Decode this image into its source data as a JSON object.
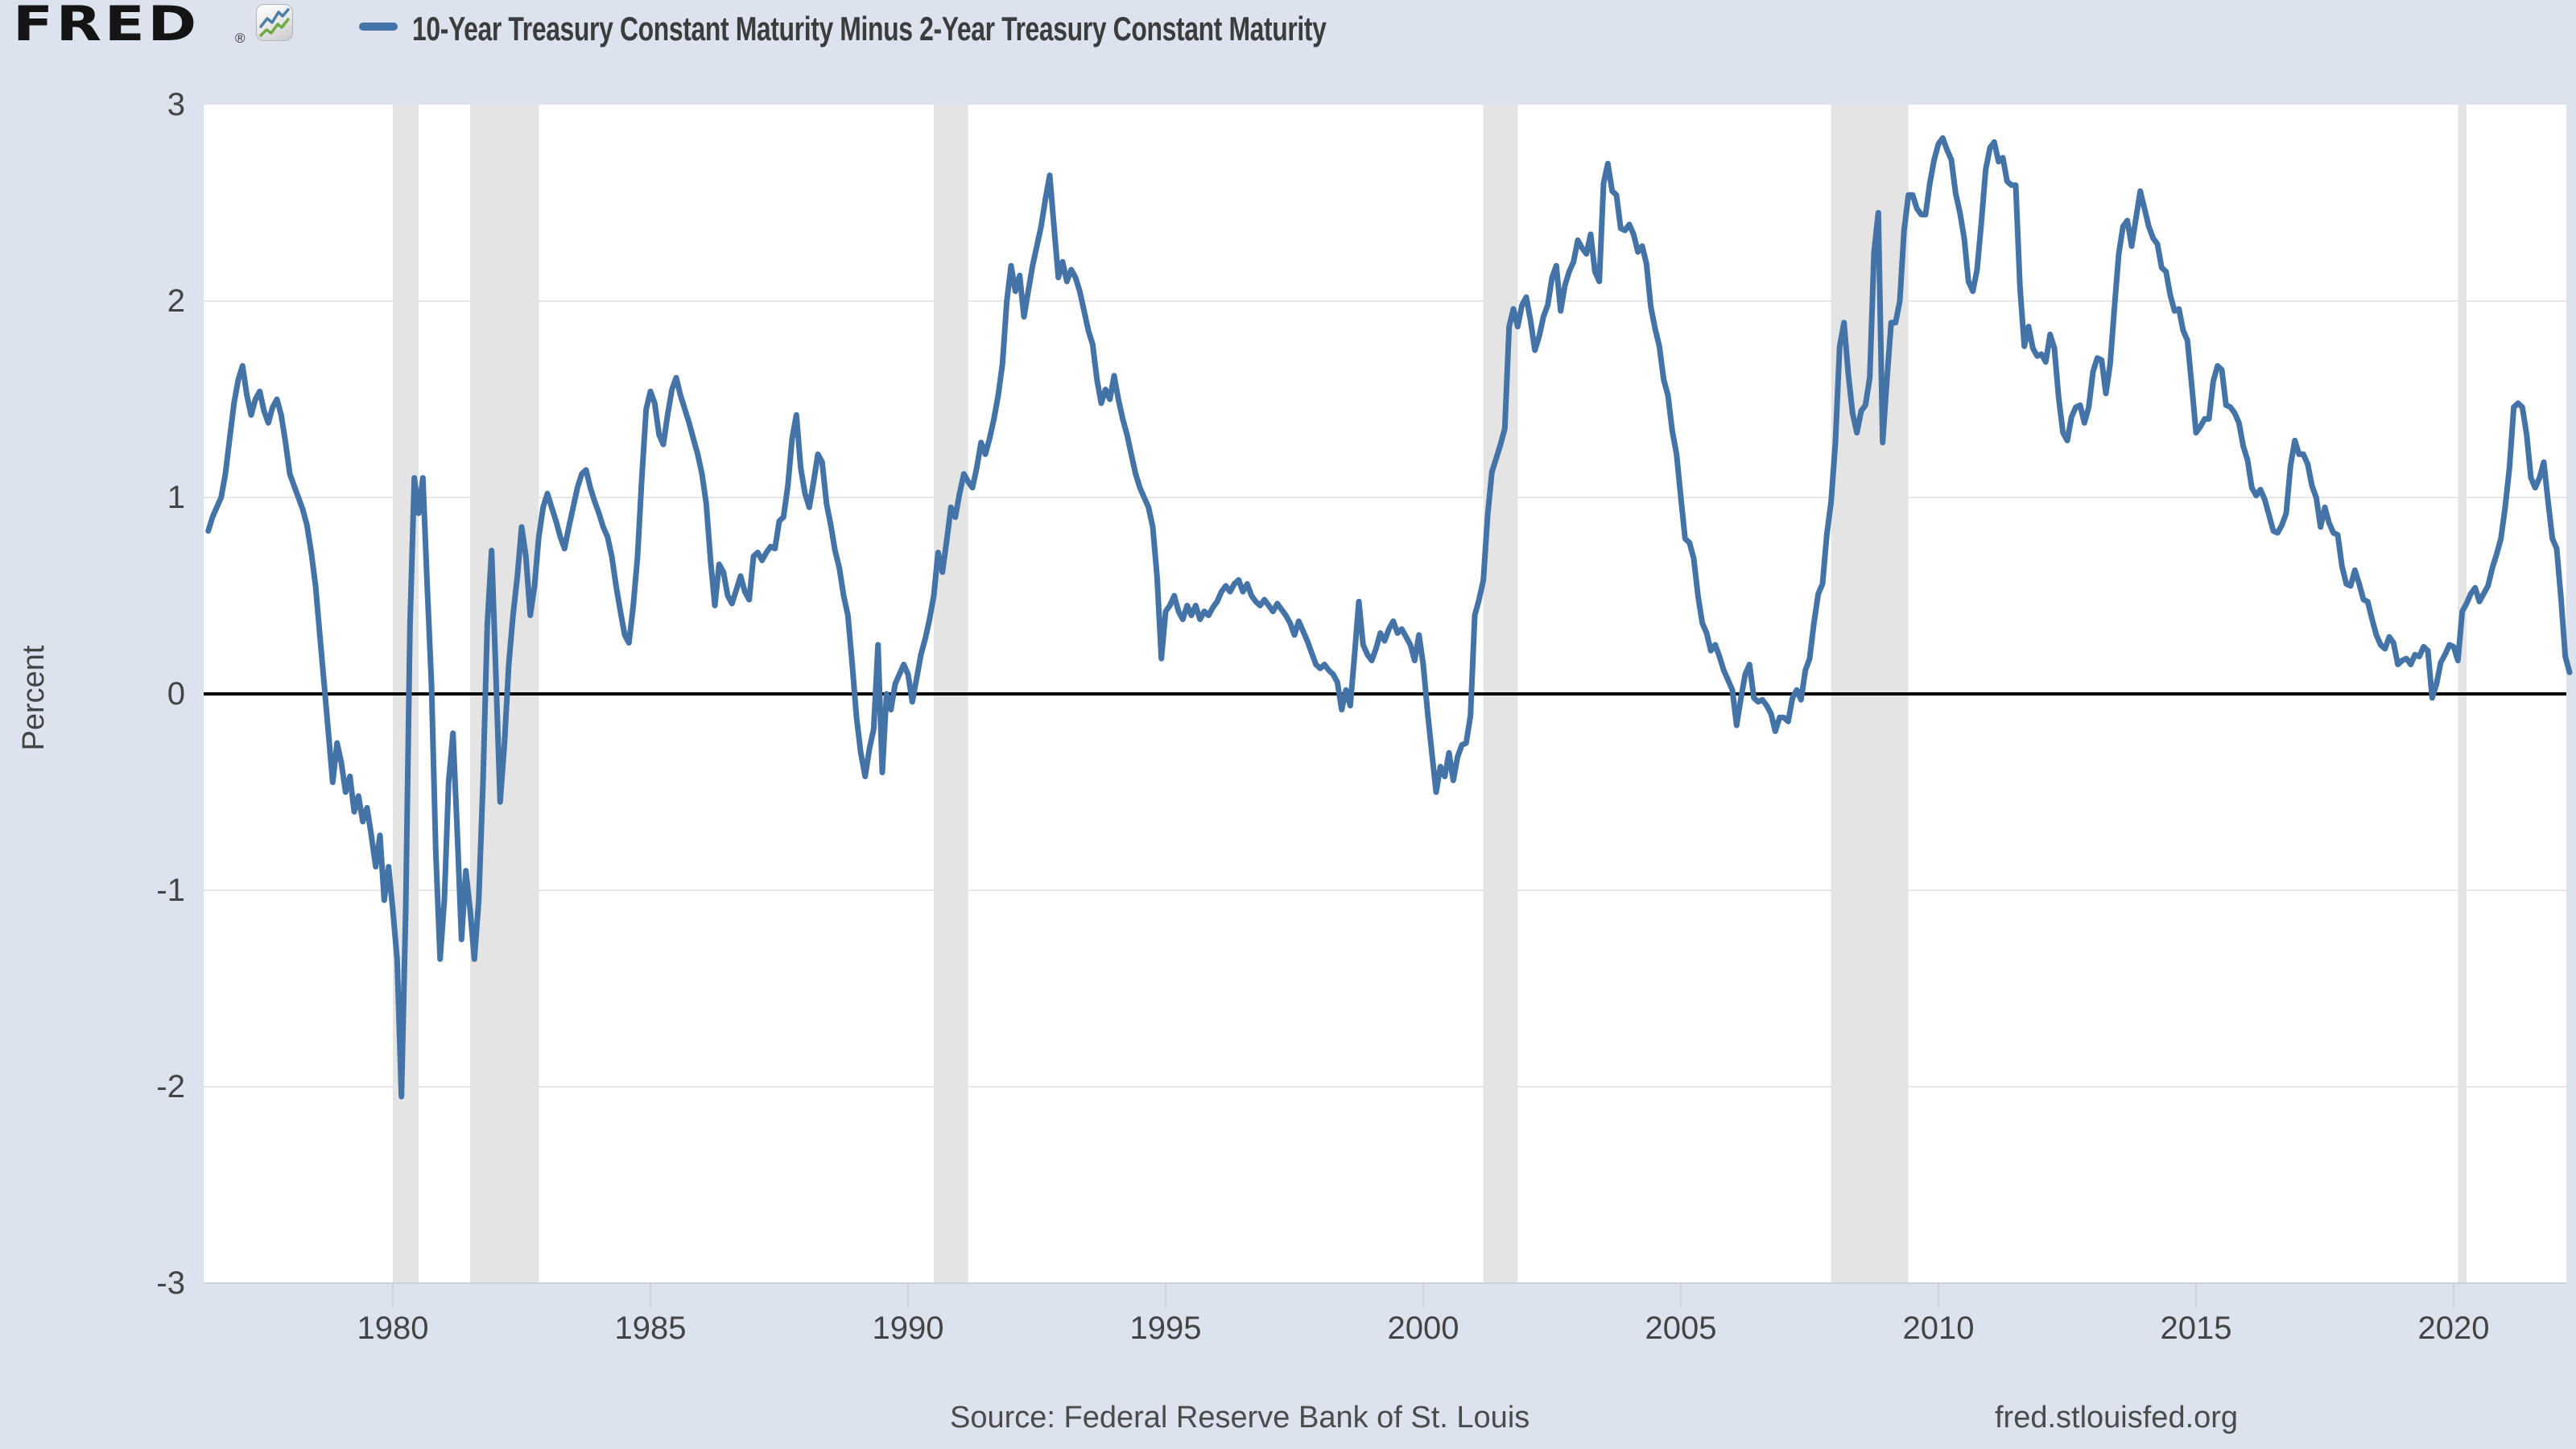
{
  "header": {
    "logo_text": "FRED",
    "registered_mark": "®",
    "title": "10-Year Treasury Constant Maturity Minus 2-Year Treasury Constant Maturity"
  },
  "y_axis": {
    "label": "Percent"
  },
  "footer": {
    "source_text": "Source: Federal Reserve Bank of St. Louis",
    "site_text": "fred.stlouisfed.org"
  },
  "colors": {
    "background": "#dce3ee",
    "plot_background": "#ffffff",
    "line": "#4473a7",
    "recession_band": "#e4e4e4",
    "gridline": "#e6e6e6",
    "zero_line": "#000000",
    "axis_line": "#c8d2e2",
    "axis_text": "#444444",
    "title_text": "#3c3c3c",
    "footer_text": "#4b4b4b",
    "logo_black": "#141414",
    "icon_blue": "#4b7fa8",
    "icon_green": "#71a83f"
  },
  "chart_data": {
    "type": "line",
    "title": "10-Year Treasury Constant Maturity Minus 2-Year Treasury Constant Maturity",
    "ylabel": "Percent",
    "unit": "percent",
    "ylim": [
      -3,
      3
    ],
    "y_ticks": [
      3,
      2,
      1,
      0,
      -1,
      -2,
      -3
    ],
    "x_ticks": [
      1980,
      1985,
      1990,
      1995,
      2000,
      2005,
      2010,
      2015,
      2020
    ],
    "x_range_years": [
      1976.33,
      2022.3
    ],
    "grid": true,
    "legend_position": "top-left",
    "zero_line": true,
    "start": "1976-06",
    "frequency": "monthly",
    "recession_bands": [
      [
        1980.0,
        1980.5
      ],
      [
        1981.5,
        1982.833
      ],
      [
        1990.5,
        1991.167
      ],
      [
        2001.167,
        2001.833
      ],
      [
        2007.917,
        2009.417
      ],
      [
        2020.083,
        2020.25
      ]
    ],
    "values": [
      0.83,
      0.9,
      0.95,
      1.0,
      1.12,
      1.3,
      1.48,
      1.6,
      1.67,
      1.52,
      1.42,
      1.5,
      1.54,
      1.44,
      1.38,
      1.46,
      1.5,
      1.42,
      1.28,
      1.12,
      1.06,
      1.0,
      0.94,
      0.86,
      0.72,
      0.55,
      0.3,
      0.05,
      -0.2,
      -0.45,
      -0.25,
      -0.35,
      -0.5,
      -0.42,
      -0.6,
      -0.52,
      -0.65,
      -0.58,
      -0.72,
      -0.88,
      -0.72,
      -1.05,
      -0.88,
      -1.1,
      -1.35,
      -2.05,
      -1.1,
      0.35,
      1.1,
      0.92,
      1.1,
      0.55,
      0.05,
      -0.8,
      -1.35,
      -1.05,
      -0.45,
      -0.2,
      -0.7,
      -1.25,
      -0.9,
      -1.1,
      -1.35,
      -1.05,
      -0.45,
      0.35,
      0.73,
      0.1,
      -0.55,
      -0.25,
      0.15,
      0.4,
      0.6,
      0.85,
      0.7,
      0.4,
      0.55,
      0.8,
      0.95,
      1.02,
      0.95,
      0.88,
      0.8,
      0.74,
      0.85,
      0.95,
      1.05,
      1.12,
      1.14,
      1.05,
      0.98,
      0.92,
      0.85,
      0.8,
      0.7,
      0.55,
      0.42,
      0.3,
      0.26,
      0.45,
      0.7,
      1.1,
      1.45,
      1.54,
      1.48,
      1.32,
      1.27,
      1.42,
      1.55,
      1.61,
      1.52,
      1.45,
      1.38,
      1.3,
      1.22,
      1.12,
      0.97,
      0.68,
      0.45,
      0.66,
      0.62,
      0.5,
      0.46,
      0.53,
      0.6,
      0.52,
      0.48,
      0.7,
      0.72,
      0.68,
      0.72,
      0.75,
      0.74,
      0.88,
      0.9,
      1.06,
      1.3,
      1.42,
      1.15,
      1.02,
      0.95,
      1.08,
      1.22,
      1.18,
      0.97,
      0.86,
      0.73,
      0.64,
      0.5,
      0.4,
      0.15,
      -0.12,
      -0.3,
      -0.42,
      -0.28,
      -0.18,
      0.25,
      -0.4,
      0.0,
      -0.08,
      0.05,
      0.1,
      0.15,
      0.1,
      -0.04,
      0.08,
      0.2,
      0.28,
      0.38,
      0.5,
      0.72,
      0.62,
      0.78,
      0.95,
      0.9,
      1.02,
      1.12,
      1.08,
      1.05,
      1.15,
      1.28,
      1.22,
      1.3,
      1.4,
      1.52,
      1.68,
      2.0,
      2.18,
      2.05,
      2.13,
      1.92,
      2.05,
      2.18,
      2.28,
      2.38,
      2.52,
      2.64,
      2.38,
      2.12,
      2.2,
      2.1,
      2.16,
      2.12,
      2.05,
      1.95,
      1.85,
      1.78,
      1.6,
      1.48,
      1.55,
      1.5,
      1.62,
      1.5,
      1.4,
      1.32,
      1.22,
      1.12,
      1.05,
      1.0,
      0.95,
      0.85,
      0.6,
      0.18,
      0.42,
      0.45,
      0.5,
      0.42,
      0.38,
      0.45,
      0.4,
      0.45,
      0.38,
      0.42,
      0.4,
      0.44,
      0.47,
      0.52,
      0.55,
      0.52,
      0.56,
      0.58,
      0.52,
      0.56,
      0.5,
      0.47,
      0.45,
      0.48,
      0.45,
      0.42,
      0.46,
      0.43,
      0.4,
      0.36,
      0.3,
      0.37,
      0.32,
      0.27,
      0.21,
      0.15,
      0.13,
      0.15,
      0.12,
      0.1,
      0.06,
      -0.08,
      0.02,
      -0.06,
      0.2,
      0.47,
      0.25,
      0.2,
      0.17,
      0.23,
      0.31,
      0.27,
      0.33,
      0.37,
      0.31,
      0.33,
      0.29,
      0.25,
      0.17,
      0.3,
      0.15,
      -0.09,
      -0.3,
      -0.5,
      -0.37,
      -0.42,
      -0.3,
      -0.44,
      -0.32,
      -0.26,
      -0.25,
      -0.11,
      0.4,
      0.48,
      0.58,
      0.91,
      1.13,
      1.2,
      1.27,
      1.35,
      1.87,
      1.96,
      1.87,
      1.98,
      2.02,
      1.9,
      1.75,
      1.82,
      1.92,
      1.98,
      2.12,
      2.18,
      1.95,
      2.08,
      2.15,
      2.2,
      2.31,
      2.27,
      2.24,
      2.34,
      2.15,
      2.1,
      2.6,
      2.7,
      2.56,
      2.54,
      2.37,
      2.36,
      2.39,
      2.34,
      2.25,
      2.28,
      2.19,
      1.97,
      1.86,
      1.77,
      1.6,
      1.52,
      1.34,
      1.22,
      1.0,
      0.79,
      0.77,
      0.69,
      0.5,
      0.36,
      0.31,
      0.22,
      0.25,
      0.19,
      0.12,
      0.07,
      0.02,
      -0.16,
      -0.02,
      0.1,
      0.15,
      -0.02,
      -0.04,
      -0.03,
      -0.06,
      -0.1,
      -0.19,
      -0.12,
      -0.12,
      -0.14,
      -0.02,
      0.02,
      -0.03,
      0.12,
      0.18,
      0.36,
      0.51,
      0.56,
      0.81,
      0.98,
      1.28,
      1.77,
      1.89,
      1.63,
      1.43,
      1.33,
      1.44,
      1.47,
      1.61,
      2.25,
      2.45,
      1.28,
      1.6,
      1.89,
      1.89,
      2.0,
      2.36,
      2.54,
      2.54,
      2.47,
      2.44,
      2.44,
      2.6,
      2.72,
      2.8,
      2.83,
      2.77,
      2.72,
      2.55,
      2.45,
      2.32,
      2.1,
      2.05,
      2.16,
      2.4,
      2.67,
      2.78,
      2.81,
      2.71,
      2.73,
      2.61,
      2.59,
      2.59,
      2.07,
      1.77,
      1.87,
      1.76,
      1.72,
      1.73,
      1.69,
      1.83,
      1.76,
      1.51,
      1.33,
      1.29,
      1.41,
      1.46,
      1.47,
      1.38,
      1.46,
      1.64,
      1.71,
      1.7,
      1.53,
      1.68,
      1.97,
      2.24,
      2.38,
      2.41,
      2.28,
      2.42,
      2.56,
      2.47,
      2.38,
      2.32,
      2.29,
      2.17,
      2.15,
      2.03,
      1.95,
      1.96,
      1.85,
      1.8,
      1.57,
      1.33,
      1.36,
      1.4,
      1.4,
      1.59,
      1.67,
      1.65,
      1.47,
      1.46,
      1.43,
      1.38,
      1.26,
      1.19,
      1.05,
      1.01,
      1.04,
      0.99,
      0.91,
      0.83,
      0.82,
      0.86,
      0.92,
      1.16,
      1.29,
      1.22,
      1.22,
      1.17,
      1.06,
      1.0,
      0.85,
      0.95,
      0.87,
      0.82,
      0.81,
      0.65,
      0.56,
      0.55,
      0.63,
      0.56,
      0.48,
      0.47,
      0.38,
      0.3,
      0.25,
      0.23,
      0.29,
      0.26,
      0.15,
      0.17,
      0.18,
      0.15,
      0.2,
      0.19,
      0.24,
      0.22,
      -0.02,
      0.05,
      0.16,
      0.2,
      0.25,
      0.24,
      0.17,
      0.42,
      0.46,
      0.51,
      0.54,
      0.47,
      0.51,
      0.55,
      0.64,
      0.71,
      0.79,
      0.95,
      1.15,
      1.46,
      1.48,
      1.46,
      1.32,
      1.1,
      1.05,
      1.1,
      1.18,
      0.98,
      0.79,
      0.74,
      0.49,
      0.19,
      0.11
    ]
  }
}
